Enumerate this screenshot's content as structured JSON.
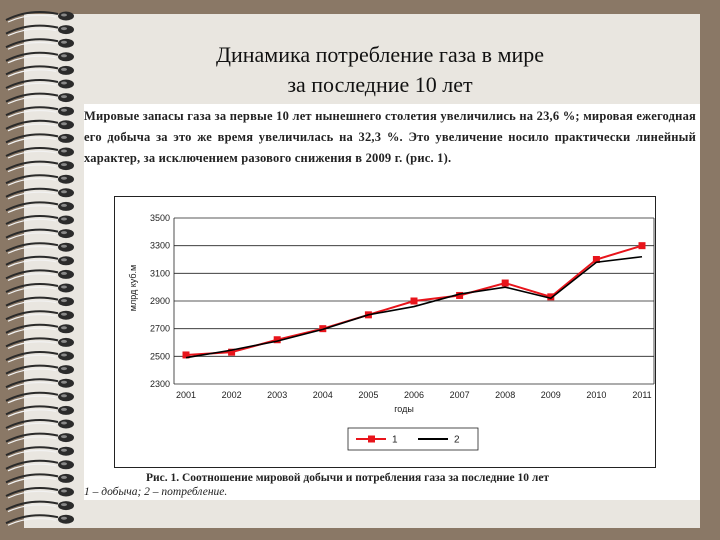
{
  "slide": {
    "title_line1": "Динамика потребление газа в мире",
    "title_line2": "за последние 10 лет"
  },
  "document": {
    "paragraph": "Мировые запасы газа за первые 10 лет нынешнего столетия увеличились на 23,6 %; мировая ежегодная его добыча за это же время увеличилась на 32,3 %. Это увеличение носило практически линейный характер, за исключением разового снижения в 2009 г. (рис. 1).",
    "caption": "Рис. 1. Соотношение мировой добычи и потребления газа за последние 10 лет",
    "legend_caption": "1 – добыча; 2 – потребление."
  },
  "chart_data": {
    "type": "line",
    "title": "",
    "xlabel": "годы",
    "ylabel": "млрд куб.м",
    "categories": [
      "2001",
      "2002",
      "2003",
      "2004",
      "2005",
      "2006",
      "2007",
      "2008",
      "2009",
      "2010",
      "2011"
    ],
    "ylim": [
      2300,
      3500
    ],
    "yticks": [
      "3500",
      "3300",
      "3100",
      "2900",
      "2700",
      "2500",
      "2300"
    ],
    "grid": true,
    "legend_position": "bottom",
    "series": [
      {
        "name": "1",
        "values": [
          2510,
          2530,
          2620,
          2700,
          2800,
          2900,
          2940,
          3030,
          2930,
          3200,
          3300
        ],
        "color": "#e8141b",
        "marker": "square"
      },
      {
        "name": "2",
        "values": [
          2490,
          2545,
          2610,
          2695,
          2800,
          2860,
          2950,
          3000,
          2920,
          3180,
          3220
        ],
        "color": "#000000",
        "marker": "none"
      }
    ]
  }
}
